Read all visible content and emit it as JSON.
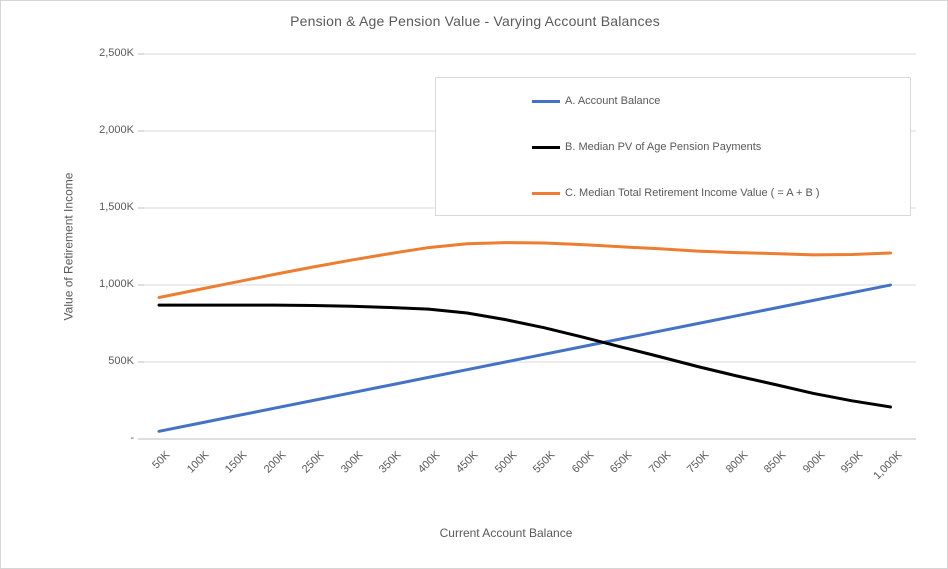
{
  "frame": {
    "background": "#ffffff",
    "border_color": "#d6d6d6"
  },
  "title": "Pension & Age Pension Value - Varying Account Balances",
  "axes": {
    "x_title": "Current Account Balance",
    "y_title": "Value of Retirement Income"
  },
  "chart_data": {
    "type": "line",
    "title": "Pension & Age Pension Value - Varying Account Balances",
    "xlabel": "Current Account Balance",
    "ylabel": "Value of Retirement Income",
    "units": "thousands (K)",
    "categories": [
      "50K",
      "100K",
      "150K",
      "200K",
      "250K",
      "300K",
      "350K",
      "400K",
      "450K",
      "500K",
      "550K",
      "600K",
      "650K",
      "700K",
      "750K",
      "800K",
      "850K",
      "900K",
      "950K",
      "1,000K"
    ],
    "x_values_k": [
      50,
      100,
      150,
      200,
      250,
      300,
      350,
      400,
      450,
      500,
      550,
      600,
      650,
      700,
      750,
      800,
      850,
      900,
      950,
      1000
    ],
    "series": [
      {
        "id": "account_balance",
        "name": "A. Account Balance",
        "color": "#4472C4",
        "values": [
          50,
          100,
          150,
          200,
          250,
          300,
          350,
          400,
          450,
          500,
          550,
          600,
          650,
          700,
          750,
          800,
          850,
          900,
          950,
          1000
        ]
      },
      {
        "id": "age_pension_pv",
        "name": "B. Median PV of Age Pension Payments",
        "color": "#000000",
        "values": [
          869,
          869,
          869,
          869,
          867,
          862,
          854,
          843,
          818,
          775,
          723,
          662,
          598,
          535,
          470,
          410,
          354,
          296,
          248,
          208
        ]
      },
      {
        "id": "total_income",
        "name": "C. Median Total Retirement Income Value ( = A + B )",
        "color": "#ED7D31",
        "values": [
          919,
          969,
          1019,
          1069,
          1117,
          1162,
          1204,
          1243,
          1268,
          1275,
          1273,
          1262,
          1248,
          1235,
          1220,
          1210,
          1204,
          1196,
          1198,
          1208
        ]
      }
    ],
    "y_axis": {
      "ticks": [
        {
          "label": "-",
          "value": 0
        },
        {
          "label": "500K",
          "value": 500
        },
        {
          "label": "1,000K",
          "value": 1000
        },
        {
          "label": "1,500K",
          "value": 1500
        },
        {
          "label": "2,000K",
          "value": 2000
        },
        {
          "label": "2,500K",
          "value": 2500
        }
      ]
    },
    "ylim": [
      0,
      2500
    ],
    "x_tick_rotation": 45,
    "grid": true,
    "legend_position": "inside-top-right",
    "colors": {
      "grid": "#d9d9d9",
      "axis": "#bfbfbf",
      "text": "#595959",
      "legend_border": "#d9d9d9"
    }
  }
}
